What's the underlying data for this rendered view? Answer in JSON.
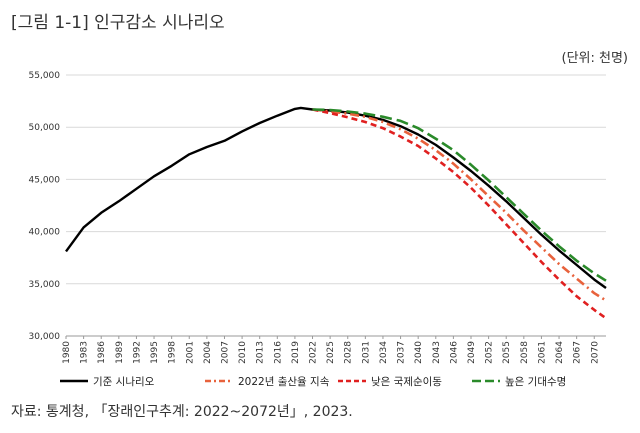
{
  "figure": {
    "title": "[그림 1-1] 인구감소 시나리오",
    "unit": "(단위: 천명)",
    "source": "자료: 통계청, 「장래인구추계: 2022~2072년」, 2023."
  },
  "chart_data": {
    "type": "line",
    "title": "[그림 1-1] 인구감소 시나리오",
    "ylabel": "(단위: 천명)",
    "xlabel": "",
    "ylim": [
      30000,
      55000
    ],
    "yticks": [
      30000,
      35000,
      40000,
      45000,
      50000,
      55000
    ],
    "ytick_labels": [
      "30,000",
      "35,000",
      "40,000",
      "45,000",
      "50,000",
      "55,000"
    ],
    "xlim": [
      1980,
      2072
    ],
    "xtick_labels": [
      "1980",
      "1983",
      "1986",
      "1989",
      "1992",
      "1995",
      "1998",
      "2001",
      "2004",
      "2007",
      "2010",
      "2013",
      "2016",
      "2019",
      "2022",
      "2025",
      "2028",
      "2031",
      "2034",
      "2037",
      "2040",
      "2043",
      "2046",
      "2049",
      "2052",
      "2055",
      "2058",
      "2061",
      "2064",
      "2067",
      "2070"
    ],
    "grid": "horizontal",
    "legend": "bottom",
    "series": [
      {
        "name": "기준 시나리오",
        "color": "#000000",
        "style": "solid",
        "x": [
          1980,
          1983,
          1986,
          1989,
          1992,
          1995,
          1998,
          2001,
          2004,
          2007,
          2010,
          2013,
          2016,
          2019,
          2020,
          2022,
          2025,
          2028,
          2031,
          2034,
          2037,
          2040,
          2043,
          2046,
          2049,
          2052,
          2055,
          2058,
          2061,
          2064,
          2067,
          2070,
          2072
        ],
        "values": [
          38100,
          40400,
          41800,
          42900,
          44100,
          45300,
          46300,
          47400,
          48100,
          48700,
          49600,
          50400,
          51100,
          51750,
          51850,
          51700,
          51600,
          51400,
          51100,
          50700,
          50100,
          49300,
          48300,
          47100,
          45800,
          44400,
          42900,
          41300,
          39700,
          38200,
          36800,
          35400,
          34600
        ]
      },
      {
        "name": "2022년 출산율 지속",
        "color": "#e8623c",
        "style": "dashdot",
        "x": [
          2022,
          2025,
          2028,
          2031,
          2034,
          2037,
          2040,
          2043,
          2046,
          2049,
          2052,
          2055,
          2058,
          2061,
          2064,
          2067,
          2070,
          2072
        ],
        "values": [
          51700,
          51500,
          51300,
          51000,
          50500,
          49800,
          48900,
          47800,
          46500,
          45000,
          43400,
          41800,
          40100,
          38500,
          36900,
          35500,
          34100,
          33400
        ]
      },
      {
        "name": "낮은 국제순이동",
        "color": "#e02020",
        "style": "dashed",
        "x": [
          2022,
          2025,
          2028,
          2031,
          2034,
          2037,
          2040,
          2043,
          2046,
          2049,
          2052,
          2055,
          2058,
          2061,
          2064,
          2067,
          2070,
          2072
        ],
        "values": [
          51700,
          51350,
          50950,
          50500,
          49900,
          49100,
          48200,
          47000,
          45700,
          44200,
          42500,
          40700,
          38900,
          37100,
          35400,
          33800,
          32500,
          31700
        ]
      },
      {
        "name": "높은 기대수명",
        "color": "#2a8a2a",
        "style": "longdash",
        "x": [
          2022,
          2025,
          2028,
          2031,
          2034,
          2037,
          2040,
          2043,
          2046,
          2049,
          2052,
          2055,
          2058,
          2061,
          2064,
          2067,
          2070,
          2072
        ],
        "values": [
          51700,
          51650,
          51500,
          51300,
          51000,
          50600,
          49900,
          48900,
          47800,
          46400,
          44900,
          43300,
          41700,
          40100,
          38600,
          37200,
          36000,
          35300
        ]
      }
    ]
  }
}
